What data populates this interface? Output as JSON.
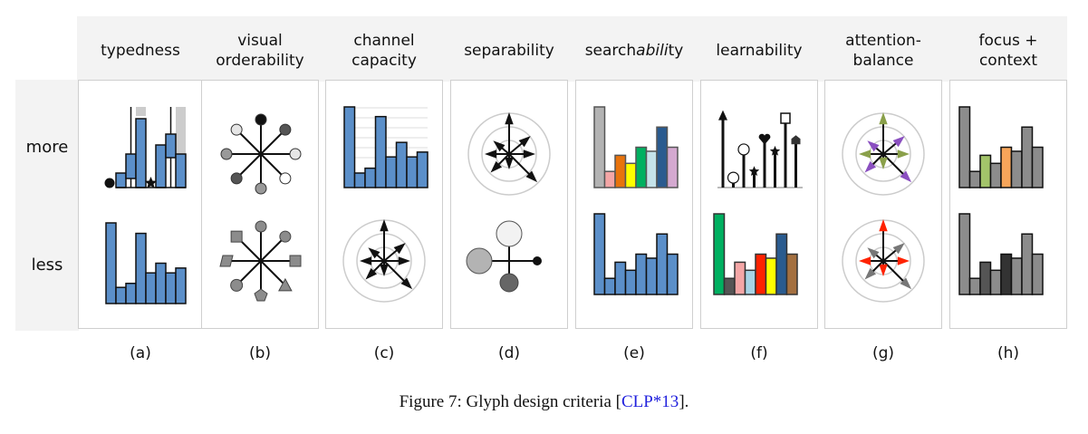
{
  "figure": {
    "caption_prefix": "Figure 7: Glyph design criteria [",
    "citation": "CLP*13",
    "caption_suffix": "].",
    "row_labels": [
      "more",
      "less"
    ],
    "columns": [
      {
        "title": "typedness",
        "sub": "(a)"
      },
      {
        "title": "visual\norderability",
        "sub": "(b)"
      },
      {
        "title": "channel\ncapacity",
        "sub": "(c)"
      },
      {
        "title": "separability",
        "sub": "(d)"
      },
      {
        "title": "searchability",
        "sub": "(e)"
      },
      {
        "title": "learnability",
        "sub": "(f)"
      },
      {
        "title": "attention-\nbalance",
        "sub": "(g)"
      },
      {
        "title": "focus +\ncontext",
        "sub": "(h)"
      }
    ]
  },
  "colors": {
    "bar_blue": "#5b8fc9",
    "bar_grey": "#8c8c8c",
    "light_grey": "#cccccc",
    "citation_blue": "#2222dd",
    "searchability": [
      "#b3b3b3",
      "#f4a6a6",
      "#e8730c",
      "#ffff00",
      "#00b060",
      "#c5e3ea",
      "#2a5b8f",
      "#d4a9d0"
    ],
    "learnability_less": [
      "#00b060",
      "#555555",
      "#f4a6a6",
      "#a8d4e6",
      "#ff2200",
      "#ffff00",
      "#2a5b8f",
      "#a47040"
    ],
    "focus_more": [
      "#8c8c8c",
      "#8c8c8c",
      "#a3c46a",
      "#8c8c8c",
      "#f7a55a",
      "#8c8c8c",
      "#8c8c8c",
      "#8c8c8c"
    ],
    "focus_less": [
      "#8c8c8c",
      "#8c8c8c",
      "#555555",
      "#8c8c8c",
      "#333333",
      "#8c8c8c",
      "#8c8c8c",
      "#8c8c8c"
    ],
    "attention_more": [
      "#8aa04a",
      "#8a4fc0"
    ],
    "attention_less": [
      "#ff2200",
      "#777777"
    ]
  },
  "glyph_values": {
    "base_bars": [
      1.0,
      0.2,
      0.4,
      0.3,
      0.5,
      0.45,
      0.75,
      0.5
    ],
    "less_bars_a": [
      1.0,
      0.2,
      0.25,
      0.87,
      0.38,
      0.5,
      0.38,
      0.44
    ],
    "capacity_bars": [
      1.0,
      0.18,
      0.24,
      0.88,
      0.38,
      0.56,
      0.38,
      0.44
    ]
  }
}
